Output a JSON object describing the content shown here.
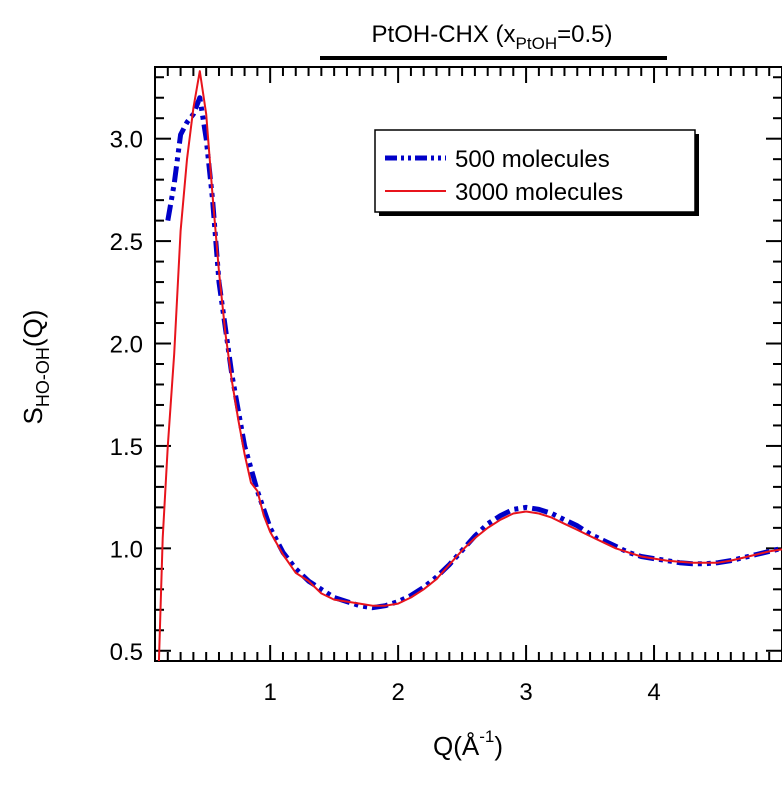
{
  "chart_data": {
    "type": "line",
    "title": {
      "main": "PtOH-CHX (x",
      "sub": "PtOH",
      "tail": "=0.5)"
    },
    "xlabel": {
      "main": "Q(Å",
      "sup": "-1",
      "tail": ")"
    },
    "ylabel": {
      "main": "S",
      "sub": "HO-OH",
      "tail": "(Q)"
    },
    "xlim": [
      0.1,
      5.0
    ],
    "ylim": [
      0.45,
      3.35
    ],
    "x_ticks": [
      1,
      2,
      3,
      4
    ],
    "x_tick_labels": [
      "1",
      "2",
      "3",
      "4"
    ],
    "y_ticks": [
      0.5,
      1.0,
      1.5,
      2.0,
      2.5,
      3.0
    ],
    "y_tick_labels": [
      "0.5",
      "1.0",
      "1.5",
      "2.0",
      "2.5",
      "3.0"
    ],
    "legend_position": "top-right",
    "colors": {
      "series_500": "#0000c8",
      "series_3000": "#e8141c"
    },
    "series": [
      {
        "name": "500 molecules",
        "style": "dash-dot-dot",
        "x": [
          0.2,
          0.25,
          0.3,
          0.35,
          0.4,
          0.45,
          0.5,
          0.55,
          0.6,
          0.7,
          0.8,
          0.9,
          1.0,
          1.1,
          1.2,
          1.3,
          1.4,
          1.5,
          1.6,
          1.7,
          1.8,
          1.9,
          2.0,
          2.1,
          2.2,
          2.3,
          2.4,
          2.5,
          2.6,
          2.7,
          2.8,
          2.9,
          3.0,
          3.1,
          3.2,
          3.3,
          3.4,
          3.5,
          3.6,
          3.7,
          3.8,
          3.9,
          4.0,
          4.1,
          4.2,
          4.3,
          4.4,
          4.5,
          4.6,
          4.7,
          4.8,
          4.9,
          5.0
        ],
        "y": [
          2.6,
          2.78,
          3.02,
          3.08,
          3.12,
          3.2,
          3.0,
          2.7,
          2.3,
          1.85,
          1.5,
          1.28,
          1.1,
          0.98,
          0.9,
          0.84,
          0.8,
          0.76,
          0.74,
          0.72,
          0.71,
          0.72,
          0.74,
          0.77,
          0.81,
          0.86,
          0.92,
          0.99,
          1.06,
          1.12,
          1.16,
          1.19,
          1.2,
          1.19,
          1.17,
          1.14,
          1.11,
          1.07,
          1.04,
          1.01,
          0.98,
          0.96,
          0.95,
          0.94,
          0.93,
          0.925,
          0.925,
          0.93,
          0.94,
          0.955,
          0.97,
          0.985,
          1.0
        ]
      },
      {
        "name": "3000 molecules",
        "style": "solid",
        "x": [
          0.13,
          0.16,
          0.2,
          0.25,
          0.3,
          0.35,
          0.4,
          0.45,
          0.5,
          0.55,
          0.6,
          0.65,
          0.7,
          0.75,
          0.8,
          0.85,
          0.9,
          0.95,
          1.0,
          1.1,
          1.2,
          1.3,
          1.4,
          1.5,
          1.6,
          1.7,
          1.8,
          1.9,
          2.0,
          2.1,
          2.2,
          2.3,
          2.4,
          2.5,
          2.6,
          2.7,
          2.8,
          2.9,
          3.0,
          3.1,
          3.2,
          3.3,
          3.4,
          3.5,
          3.6,
          3.7,
          3.8,
          3.9,
          4.0,
          4.1,
          4.2,
          4.3,
          4.4,
          4.5,
          4.6,
          4.7,
          4.8,
          4.9,
          5.0
        ],
        "y": [
          0.43,
          1.05,
          1.5,
          1.95,
          2.55,
          2.9,
          3.15,
          3.33,
          3.12,
          2.72,
          2.35,
          2.05,
          1.82,
          1.63,
          1.46,
          1.32,
          1.28,
          1.16,
          1.08,
          0.97,
          0.88,
          0.84,
          0.78,
          0.75,
          0.74,
          0.73,
          0.72,
          0.72,
          0.73,
          0.76,
          0.8,
          0.85,
          0.92,
          0.99,
          1.05,
          1.1,
          1.14,
          1.17,
          1.18,
          1.17,
          1.15,
          1.12,
          1.09,
          1.06,
          1.03,
          1.0,
          0.98,
          0.96,
          0.95,
          0.94,
          0.935,
          0.93,
          0.93,
          0.93,
          0.94,
          0.955,
          0.97,
          0.985,
          0.995
        ]
      }
    ]
  }
}
